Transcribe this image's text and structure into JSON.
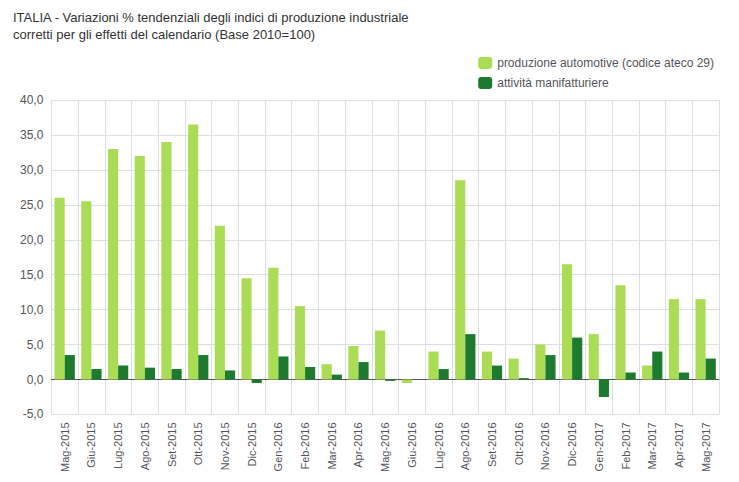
{
  "chart_data": {
    "type": "bar",
    "title": "ITALIA - Variazioni % tendenziali degli indici di produzione industriale",
    "subtitle": "corretti per gli effetti del calendario (Base 2010=100)",
    "categories": [
      "Mag-2015",
      "Giu-2015",
      "Lug-2015",
      "Ago-2015",
      "Set-2015",
      "Ott-2015",
      "Nov-2015",
      "Dic-2015",
      "Gen-2016",
      "Feb-2016",
      "Mar-2016",
      "Apr-2016",
      "Mag-2016",
      "Giu-2016",
      "Lug-2016",
      "Ago-2016",
      "Set-2016",
      "Ott-2016",
      "Nov-2016",
      "Dic-2016",
      "Gen-2017",
      "Feb-2017",
      "Mar-2017",
      "Apr-2017",
      "Mag-2017"
    ],
    "series": [
      {
        "name": "produzione automotive (codice ateco 29)",
        "color": "#aadd55",
        "values": [
          26.0,
          25.5,
          33.0,
          32.0,
          34.0,
          36.5,
          22.0,
          14.5,
          16.0,
          10.5,
          2.2,
          4.8,
          7.0,
          -0.5,
          4.0,
          28.5,
          4.0,
          3.0,
          5.0,
          16.5,
          6.5,
          13.5,
          2.0,
          11.5,
          11.5
        ]
      },
      {
        "name": "attività manifatturiere",
        "color": "#1e7a2e",
        "values": [
          3.5,
          1.5,
          2.0,
          1.7,
          1.5,
          3.5,
          1.3,
          -0.5,
          3.3,
          1.8,
          0.7,
          2.5,
          -0.2,
          0.0,
          1.5,
          6.5,
          2.0,
          0.2,
          3.5,
          6.0,
          -2.5,
          1.0,
          4.0,
          1.0,
          3.0
        ]
      }
    ],
    "ylim": [
      -5.0,
      40.0
    ],
    "yticks": [
      {
        "value": -5.0,
        "label": "-5,0"
      },
      {
        "value": 0.0,
        "label": "0,0"
      },
      {
        "value": 5.0,
        "label": "5,0"
      },
      {
        "value": 10.0,
        "label": "10,0"
      },
      {
        "value": 15.0,
        "label": "15,0"
      },
      {
        "value": 20.0,
        "label": "20,0"
      },
      {
        "value": 25.0,
        "label": "25,0"
      },
      {
        "value": 30.0,
        "label": "30,0"
      },
      {
        "value": 35.0,
        "label": "35,0"
      },
      {
        "value": 40.0,
        "label": "40,0"
      }
    ],
    "grid": true,
    "legend": "top right"
  }
}
